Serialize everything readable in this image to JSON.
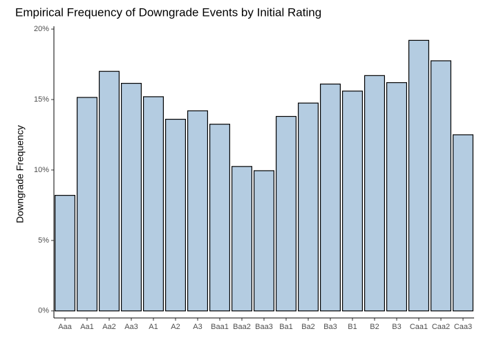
{
  "chart_data": {
    "type": "bar",
    "title": "Empirical Frequency of Downgrade Events by Initial Rating",
    "y_label": "Downgrade Frequency",
    "categories": [
      "Aaa",
      "Aa1",
      "Aa2",
      "Aa3",
      "A1",
      "A2",
      "A3",
      "Baa1",
      "Baa2",
      "Baa3",
      "Ba1",
      "Ba2",
      "Ba3",
      "B1",
      "B2",
      "B3",
      "Caa1",
      "Caa2",
      "Caa3"
    ],
    "values": [
      8.2,
      15.15,
      17.0,
      16.15,
      15.2,
      13.6,
      14.2,
      13.25,
      10.25,
      9.95,
      13.8,
      14.75,
      16.1,
      15.6,
      16.7,
      16.2,
      19.2,
      17.75,
      12.5
    ],
    "color": "#b4cce1",
    "ylim": [
      -0.5,
      20.2
    ],
    "yticks": [
      {
        "value": 0,
        "label": "0%"
      },
      {
        "value": 5,
        "label": "5%"
      },
      {
        "value": 10,
        "label": "10%"
      },
      {
        "value": 15,
        "label": "15%"
      },
      {
        "value": 20,
        "label": "20%"
      }
    ],
    "grid": false
  }
}
